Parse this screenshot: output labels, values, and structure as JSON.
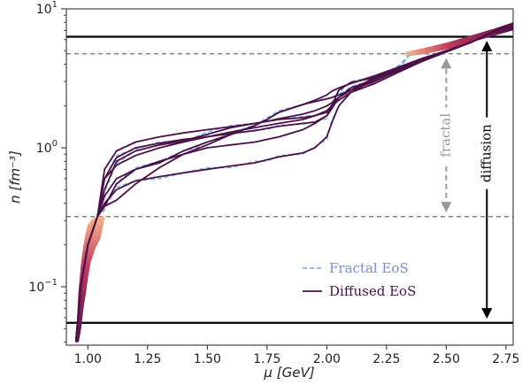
{
  "chart_data": {
    "type": "line",
    "title": "",
    "xlabel": "μ [GeV]",
    "ylabel": "n [fm⁻³]",
    "xlim": [
      0.91,
      2.78
    ],
    "ylim": [
      0.038,
      10
    ],
    "yscale": "log",
    "grid": false,
    "legend_position": "lower-right",
    "x_ticks": [
      1.0,
      1.25,
      1.5,
      1.75,
      2.0,
      2.25,
      2.5,
      2.75
    ],
    "x_tick_labels": [
      "1.00",
      "1.25",
      "1.50",
      "1.75",
      "2.00",
      "2.25",
      "2.50",
      "2.75"
    ],
    "y_ticks": [
      {
        "value": 10,
        "base": "10",
        "exp": "1"
      },
      {
        "value": 1,
        "base": "10",
        "exp": "0"
      },
      {
        "value": 0.1,
        "base": "10",
        "exp": "−1"
      }
    ],
    "hlines": [
      {
        "y": 6.3,
        "style": "solid",
        "color": "#000000"
      },
      {
        "y": 4.75,
        "style": "dashed",
        "color": "#888888"
      },
      {
        "y": 0.32,
        "style": "dashed",
        "color": "#888888"
      },
      {
        "y": 0.055,
        "style": "solid",
        "color": "#000000"
      }
    ],
    "annotations": [
      {
        "text": "fractal",
        "x": 2.5,
        "y_from": 0.32,
        "y_to": 4.75,
        "color": "#999999"
      },
      {
        "text": "diffusion",
        "x": 2.67,
        "y_from": 0.055,
        "y_to": 6.3,
        "color": "#000000"
      }
    ],
    "legend": [
      {
        "label": "Fractal EoS",
        "style": "dashed",
        "color": "#7fb6e6",
        "text_color": "#7a8fd6"
      },
      {
        "label": "Diffused EoS",
        "style": "solid",
        "color": "#4a1048",
        "text_color": "#4a1048"
      }
    ],
    "colors": {
      "diffused": "#4a1048",
      "fractal": "#7fb6e6",
      "gradient_start": "#f8b88b",
      "gradient_end": "#4a1048"
    },
    "series": [
      {
        "name": "Diffused EoS",
        "x": [
          0.95,
          0.97,
          1.0,
          1.04,
          1.07,
          1.12,
          1.2,
          1.3,
          1.4,
          1.5,
          1.6,
          1.7,
          1.75,
          1.8,
          1.9,
          1.95,
          2.0,
          2.02,
          2.05,
          2.1,
          2.2,
          2.3,
          2.4,
          2.5,
          2.6,
          2.75
        ],
        "y": [
          0.04,
          0.1,
          0.2,
          0.32,
          0.6,
          0.85,
          1.0,
          1.08,
          1.15,
          1.2,
          1.27,
          1.33,
          1.38,
          1.43,
          1.5,
          1.53,
          1.7,
          2.0,
          2.6,
          2.95,
          3.2,
          3.6,
          4.2,
          4.9,
          5.7,
          7.5
        ]
      },
      {
        "name": "Diffused EoS",
        "x": [
          0.95,
          0.97,
          1.0,
          1.04,
          1.07,
          1.12,
          1.2,
          1.3,
          1.4,
          1.5,
          1.6,
          1.7,
          1.75,
          1.8,
          1.9,
          1.95,
          2.0,
          2.02,
          2.05,
          2.1,
          2.2,
          2.3,
          2.4,
          2.5,
          2.6,
          2.75
        ],
        "y": [
          0.04,
          0.1,
          0.2,
          0.32,
          0.4,
          0.5,
          0.58,
          0.62,
          0.66,
          0.7,
          0.74,
          0.78,
          0.82,
          0.86,
          0.92,
          1.0,
          1.2,
          1.5,
          2.0,
          2.5,
          3.1,
          3.8,
          4.4,
          5.0,
          5.7,
          7.5
        ]
      },
      {
        "name": "Diffused EoS",
        "x": [
          0.95,
          0.97,
          1.0,
          1.04,
          1.07,
          1.12,
          1.2,
          1.3,
          1.4,
          1.5,
          1.6,
          1.7,
          1.75,
          1.8,
          1.9,
          1.95,
          2.0,
          2.02,
          2.05,
          2.1,
          2.2,
          2.3,
          2.4,
          2.5,
          2.6,
          2.75
        ],
        "y": [
          0.04,
          0.1,
          0.2,
          0.32,
          0.5,
          0.8,
          0.95,
          1.05,
          1.12,
          1.25,
          1.4,
          1.5,
          1.55,
          1.6,
          1.65,
          1.7,
          1.8,
          2.0,
          2.3,
          2.7,
          3.1,
          3.7,
          4.3,
          5.0,
          5.7,
          7.5
        ]
      },
      {
        "name": "Diffused EoS",
        "x": [
          0.95,
          0.97,
          1.0,
          1.04,
          1.07,
          1.12,
          1.2,
          1.3,
          1.4,
          1.5,
          1.6,
          1.7,
          1.75,
          1.8,
          1.9,
          1.95,
          2.0,
          2.02,
          2.05,
          2.1,
          2.2,
          2.3,
          2.4,
          2.5,
          2.6,
          2.75
        ],
        "y": [
          0.04,
          0.1,
          0.2,
          0.32,
          0.38,
          0.55,
          0.7,
          0.8,
          0.9,
          1.05,
          1.25,
          1.45,
          1.6,
          1.8,
          2.05,
          2.15,
          2.25,
          2.3,
          2.4,
          2.6,
          3.1,
          3.7,
          4.3,
          5.0,
          5.7,
          7.5
        ]
      },
      {
        "name": "Diffused EoS",
        "x": [
          0.95,
          0.97,
          1.0,
          1.04,
          1.07,
          1.12,
          1.2,
          1.3,
          1.4,
          1.5,
          1.6,
          1.7,
          1.75,
          1.8,
          1.9,
          1.95,
          2.0,
          2.02,
          2.05,
          2.1,
          2.2,
          2.3,
          2.4,
          2.5,
          2.6,
          2.75
        ],
        "y": [
          0.04,
          0.1,
          0.2,
          0.32,
          0.45,
          0.6,
          0.7,
          0.78,
          0.95,
          1.1,
          1.25,
          1.45,
          1.6,
          1.8,
          2.05,
          2.2,
          2.4,
          2.55,
          2.7,
          2.9,
          3.3,
          3.8,
          4.3,
          5.0,
          5.7,
          7.5
        ]
      },
      {
        "name": "Diffused EoS",
        "x": [
          0.95,
          0.97,
          1.0,
          1.04,
          1.07,
          1.12,
          1.2,
          1.3,
          1.4,
          1.5,
          1.6,
          1.7,
          1.75,
          1.8,
          1.9,
          1.95,
          2.0,
          2.02,
          2.05,
          2.1,
          2.2,
          2.3,
          2.4,
          2.5,
          2.6,
          2.75
        ],
        "y": [
          0.04,
          0.1,
          0.2,
          0.32,
          0.7,
          0.95,
          1.1,
          1.2,
          1.28,
          1.35,
          1.42,
          1.5,
          1.55,
          1.62,
          1.75,
          1.85,
          2.0,
          2.1,
          2.3,
          2.6,
          3.2,
          3.8,
          4.4,
          5.0,
          5.7,
          7.5
        ]
      },
      {
        "name": "Diffused EoS",
        "x": [
          0.95,
          0.97,
          1.0,
          1.04,
          1.07,
          1.12,
          1.2,
          1.3,
          1.4,
          1.5,
          1.6,
          1.7,
          1.75,
          1.8,
          1.9,
          1.95,
          2.0,
          2.02,
          2.05,
          2.1,
          2.2,
          2.3,
          2.4,
          2.5,
          2.6,
          2.75
        ],
        "y": [
          0.04,
          0.1,
          0.2,
          0.32,
          0.38,
          0.42,
          0.55,
          0.72,
          0.9,
          1.0,
          1.05,
          1.1,
          1.15,
          1.2,
          1.35,
          1.5,
          1.7,
          1.9,
          2.3,
          2.6,
          3.0,
          3.6,
          4.2,
          5.0,
          5.7,
          7.5
        ]
      },
      {
        "name": "Diffused EoS",
        "x": [
          0.95,
          0.97,
          1.0,
          1.04,
          1.07,
          1.12,
          1.2,
          1.3,
          1.4,
          1.5,
          1.6,
          1.7,
          1.75,
          1.8,
          1.9,
          1.95,
          2.0,
          2.02,
          2.05,
          2.1,
          2.2,
          2.3,
          2.4,
          2.5,
          2.6,
          2.75
        ],
        "y": [
          0.04,
          0.1,
          0.2,
          0.32,
          0.6,
          0.75,
          0.88,
          1.0,
          1.1,
          1.2,
          1.3,
          1.4,
          1.45,
          1.5,
          1.6,
          1.7,
          1.85,
          2.0,
          2.2,
          2.5,
          2.9,
          3.5,
          4.2,
          4.9,
          5.7,
          7.5
        ]
      },
      {
        "name": "Fractal EoS",
        "x": [
          0.95,
          0.97,
          1.0,
          1.04,
          1.07,
          1.12,
          1.2,
          1.3,
          1.4,
          1.5,
          1.6,
          1.7,
          1.75,
          1.8,
          1.9,
          1.95,
          2.0,
          2.02,
          2.05,
          2.1,
          2.2,
          2.3,
          2.35
        ],
        "y": [
          0.04,
          0.1,
          0.2,
          0.32,
          0.6,
          0.88,
          0.98,
          1.1,
          1.12,
          1.22,
          1.25,
          1.35,
          1.35,
          1.45,
          1.48,
          1.55,
          1.62,
          2.1,
          2.5,
          3.0,
          3.25,
          3.65,
          4.75
        ]
      },
      {
        "name": "Fractal EoS",
        "x": [
          0.95,
          0.97,
          1.0,
          1.04,
          1.07,
          1.12,
          1.2,
          1.3,
          1.4,
          1.5,
          1.6,
          1.7,
          1.75,
          1.8,
          1.9,
          1.95,
          2.0,
          2.02,
          2.05,
          2.1,
          2.2,
          2.3,
          2.35
        ],
        "y": [
          0.04,
          0.1,
          0.2,
          0.32,
          0.36,
          0.52,
          0.58,
          0.6,
          0.66,
          0.72,
          0.72,
          0.8,
          0.8,
          0.88,
          0.9,
          1.02,
          1.15,
          1.55,
          2.0,
          2.55,
          3.1,
          3.9,
          4.75
        ]
      },
      {
        "name": "Fractal EoS",
        "x": [
          0.95,
          0.97,
          1.0,
          1.04,
          1.07,
          1.12,
          1.2,
          1.3,
          1.4,
          1.5,
          1.6,
          1.7,
          1.75,
          1.8,
          1.9,
          1.95,
          2.0,
          2.02,
          2.05,
          2.1,
          2.2,
          2.3,
          2.35
        ],
        "y": [
          0.04,
          0.1,
          0.2,
          0.32,
          0.48,
          0.78,
          0.95,
          1.05,
          1.1,
          1.3,
          1.45,
          1.5,
          1.55,
          1.6,
          1.68,
          1.72,
          1.85,
          2.0,
          2.35,
          2.75,
          3.1,
          3.75,
          4.75
        ]
      },
      {
        "name": "Fractal EoS",
        "x": [
          0.95,
          0.97,
          1.0,
          1.04,
          1.07,
          1.12,
          1.2,
          1.3,
          1.4,
          1.5,
          1.6,
          1.7,
          1.75,
          1.8,
          1.9,
          1.95,
          2.0,
          2.02,
          2.05,
          2.1,
          2.2,
          2.3,
          2.35
        ],
        "y": [
          0.04,
          0.1,
          0.2,
          0.32,
          0.36,
          0.56,
          0.72,
          0.8,
          0.95,
          1.05,
          1.3,
          1.45,
          1.65,
          1.85,
          2.05,
          2.2,
          2.25,
          2.3,
          2.45,
          2.65,
          3.1,
          3.75,
          4.75
        ]
      }
    ]
  }
}
